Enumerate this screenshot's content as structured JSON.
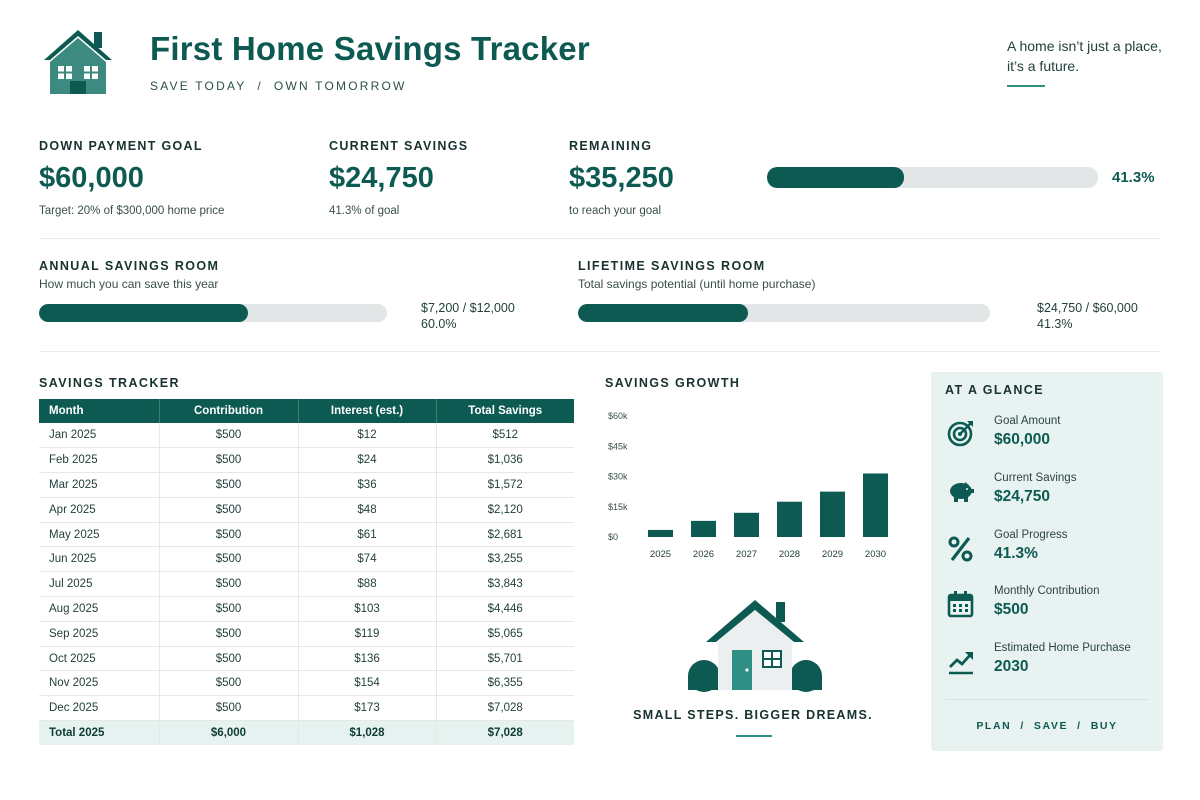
{
  "header": {
    "title": "First Home Savings Tracker",
    "subtitle": "SAVE TODAY  /  OWN TOMORROW",
    "quote_line1": "A home isn’t just a place,",
    "quote_line2": "it’s a future."
  },
  "stats": {
    "goal": {
      "label": "DOWN PAYMENT GOAL",
      "value": "$60,000",
      "sub": "Target: 20% of $300,000 home price"
    },
    "current": {
      "label": "CURRENT SAVINGS",
      "value": "$24,750",
      "sub": "41.3% of goal"
    },
    "remaining": {
      "label": "REMAINING",
      "value": "$35,250",
      "sub": "to reach your goal"
    },
    "progress_text": "41.3%",
    "progress_fraction": 0.413
  },
  "rooms": {
    "annual": {
      "label": "ANNUAL SAVINGS ROOM",
      "desc": "How much you can save this year",
      "value": "$7,200 / $12,000",
      "percent": "60.0%",
      "fraction": 0.6
    },
    "lifetime": {
      "label": "LIFETIME SAVINGS ROOM",
      "desc": "Total savings potential (until home purchase)",
      "value": "$24,750 / $60,000",
      "percent": "41.3%",
      "fraction": 0.413
    }
  },
  "tracker": {
    "title": "SAVINGS TRACKER",
    "columns": [
      "Month",
      "Contribution",
      "Interest (est.)",
      "Total Savings"
    ],
    "rows": [
      [
        "Jan 2025",
        "$500",
        "$12",
        "$512"
      ],
      [
        "Feb 2025",
        "$500",
        "$24",
        "$1,036"
      ],
      [
        "Mar 2025",
        "$500",
        "$36",
        "$1,572"
      ],
      [
        "Apr 2025",
        "$500",
        "$48",
        "$2,120"
      ],
      [
        "May 2025",
        "$500",
        "$61",
        "$2,681"
      ],
      [
        "Jun 2025",
        "$500",
        "$74",
        "$3,255"
      ],
      [
        "Jul 2025",
        "$500",
        "$88",
        "$3,843"
      ],
      [
        "Aug 2025",
        "$500",
        "$103",
        "$4,446"
      ],
      [
        "Sep 2025",
        "$500",
        "$119",
        "$5,065"
      ],
      [
        "Oct 2025",
        "$500",
        "$136",
        "$5,701"
      ],
      [
        "Nov 2025",
        "$500",
        "$154",
        "$6,355"
      ],
      [
        "Dec 2025",
        "$500",
        "$173",
        "$7,028"
      ]
    ],
    "total": [
      "Total 2025",
      "$6,000",
      "$1,028",
      "$7,028"
    ]
  },
  "growth": {
    "title": "SAVINGS GROWTH",
    "tagline": "SMALL STEPS. BIGGER DREAMS."
  },
  "chart_data": {
    "type": "bar",
    "categories": [
      "2025",
      "2026",
      "2027",
      "2028",
      "2029",
      "2030"
    ],
    "values": [
      3.5,
      8,
      12,
      17.5,
      22.5,
      31.5
    ],
    "yticks": [
      "$0",
      "$15k",
      "$30k",
      "$45k",
      "$60k"
    ],
    "ylim": [
      0,
      60
    ],
    "grid": false,
    "color": "#0d5a52"
  },
  "glance": {
    "title": "AT A GLANCE",
    "items": [
      {
        "icon": "target-icon",
        "label": "Goal Amount",
        "value": "$60,000"
      },
      {
        "icon": "piggy-bank-icon",
        "label": "Current Savings",
        "value": "$24,750"
      },
      {
        "icon": "percent-icon",
        "label": "Goal Progress",
        "value": "41.3%"
      },
      {
        "icon": "calendar-icon",
        "label": "Monthly Contribution",
        "value": "$500"
      },
      {
        "icon": "trend-up-icon",
        "label": "Estimated Home Purchase",
        "value": "2030"
      }
    ],
    "footer": "PLAN  /  SAVE  /  BUY"
  },
  "colors": {
    "accent": "#0d5a52",
    "panel": "#e8f3f1",
    "track": "#e3e6e6"
  }
}
